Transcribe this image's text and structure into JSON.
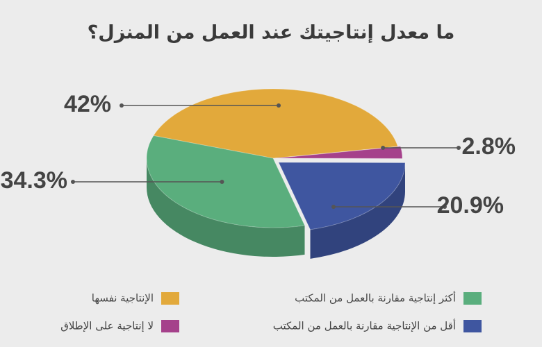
{
  "chart_data": {
    "type": "pie",
    "title": "ما معدل إنتاجيتك عند العمل من المنزل؟",
    "categories": [
      "الإنتاجية نفسها",
      "لا إنتاجية على الإطلاق",
      "أقل من الإنتاجية مقارنة بالعمل من المكتب",
      "أكثر إنتاجية مقارنة بالعمل من المكتب"
    ],
    "values": [
      42,
      2.8,
      20.9,
      34.3
    ],
    "value_labels": [
      "42%",
      "2.8%",
      "20.9%",
      "34.3%"
    ],
    "colors": [
      "#e2a93b",
      "#a5418b",
      "#3f56a0",
      "#5aae7d"
    ]
  }
}
